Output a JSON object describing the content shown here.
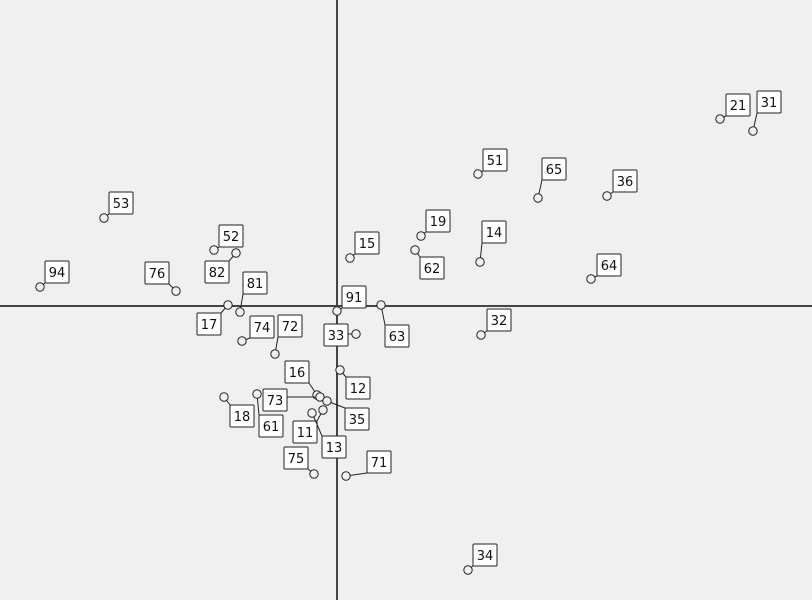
{
  "chart_data": {
    "type": "scatter",
    "title": "",
    "xlabel": "",
    "ylabel": "",
    "xlim": [
      -337,
      475
    ],
    "ylim": [
      -294,
      306
    ],
    "grid": false,
    "legend": "none",
    "axis_color": "#444444",
    "background": "#f0f0f0",
    "points": [
      {
        "label": "21",
        "x": 383,
        "y": 187,
        "lx": 401,
        "ly": 201
      },
      {
        "label": "31",
        "x": 416,
        "y": 175,
        "lx": 432,
        "ly": 204
      },
      {
        "label": "51",
        "x": 141,
        "y": 132,
        "lx": 158,
        "ly": 146
      },
      {
        "label": "65",
        "x": 201,
        "y": 108,
        "lx": 217,
        "ly": 137
      },
      {
        "label": "36",
        "x": 270,
        "y": 110,
        "lx": 288,
        "ly": 125
      },
      {
        "label": "53",
        "x": -233,
        "y": 88,
        "lx": -216,
        "ly": 103
      },
      {
        "label": "19",
        "x": 84,
        "y": 70,
        "lx": 101,
        "ly": 85
      },
      {
        "label": "14",
        "x": 143,
        "y": 44,
        "lx": 157,
        "ly": 74
      },
      {
        "label": "52",
        "x": -123,
        "y": 56,
        "lx": -106,
        "ly": 70
      },
      {
        "label": "15",
        "x": 13,
        "y": 48,
        "lx": 30,
        "ly": 63
      },
      {
        "label": "62",
        "x": 78,
        "y": 56,
        "lx": 95,
        "ly": 38
      },
      {
        "label": "82",
        "x": -101,
        "y": 53,
        "lx": -120,
        "ly": 34
      },
      {
        "label": "94",
        "x": -297,
        "y": 19,
        "lx": -280,
        "ly": 34
      },
      {
        "label": "76",
        "x": -161,
        "y": 15,
        "lx": -180,
        "ly": 33
      },
      {
        "label": "64",
        "x": 254,
        "y": 27,
        "lx": 272,
        "ly": 41
      },
      {
        "label": "81",
        "x": -97,
        "y": -6,
        "lx": -82,
        "ly": 23
      },
      {
        "label": "91",
        "x": 0,
        "y": -5,
        "lx": 17,
        "ly": 9
      },
      {
        "label": "17",
        "x": -109,
        "y": 1,
        "lx": -128,
        "ly": -18
      },
      {
        "label": "63",
        "x": 44,
        "y": 1,
        "lx": 60,
        "ly": -30
      },
      {
        "label": "32",
        "x": 144,
        "y": -29,
        "lx": 162,
        "ly": -14
      },
      {
        "label": "74",
        "x": -95,
        "y": -35,
        "lx": -75,
        "ly": -21
      },
      {
        "label": "72",
        "x": -62,
        "y": -48,
        "lx": -47,
        "ly": -20
      },
      {
        "label": "33",
        "x": 19,
        "y": -28,
        "lx": -1,
        "ly": -29
      },
      {
        "label": "12",
        "x": 3,
        "y": -64,
        "lx": 21,
        "ly": -82
      },
      {
        "label": "16",
        "x": -20,
        "y": -89,
        "lx": -40,
        "ly": -66
      },
      {
        "label": "73",
        "x": -17,
        "y": -91,
        "lx": -62,
        "ly": -94
      },
      {
        "label": "35",
        "x": -10,
        "y": -95,
        "lx": 20,
        "ly": -113
      },
      {
        "label": "18",
        "x": -113,
        "y": -91,
        "lx": -95,
        "ly": -110
      },
      {
        "label": "61",
        "x": -80,
        "y": -88,
        "lx": -66,
        "ly": -120
      },
      {
        "label": "11",
        "x": -14,
        "y": -104,
        "lx": -32,
        "ly": -126
      },
      {
        "label": "13",
        "x": -25,
        "y": -107,
        "lx": -3,
        "ly": -141
      },
      {
        "label": "75",
        "x": -23,
        "y": -168,
        "lx": -41,
        "ly": -152
      },
      {
        "label": "71",
        "x": 9,
        "y": -170,
        "lx": 42,
        "ly": -156
      },
      {
        "label": "34",
        "x": 131,
        "y": -264,
        "lx": 148,
        "ly": -249
      }
    ]
  }
}
